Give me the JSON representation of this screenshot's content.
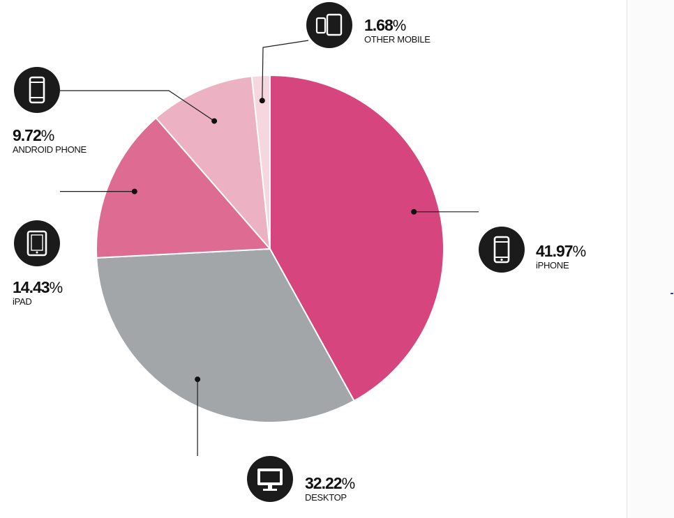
{
  "chart_data": {
    "type": "pie",
    "title": "",
    "slices": [
      {
        "label": "iPHONE",
        "value": 41.97,
        "display": "41.97",
        "color": "#d6457e",
        "icon": "smartphone-icon"
      },
      {
        "label": "DESKTOP",
        "value": 32.22,
        "display": "32.22",
        "color": "#a3a6a9",
        "icon": "desktop-monitor-icon"
      },
      {
        "label": "iPAD",
        "value": 14.43,
        "display": "14.43",
        "color": "#de6b92",
        "icon": "tablet-icon"
      },
      {
        "label": "ANDROID PHONE",
        "value": 9.72,
        "display": "9.72",
        "color": "#ecb1c3",
        "icon": "android-phone-icon"
      },
      {
        "label": "OTHER MOBILE",
        "value": 1.68,
        "display": "1.68",
        "color": "#f6d7df",
        "icon": "phone-and-tablet-icon"
      }
    ],
    "percent_sign": "%",
    "start_angle": "12 o'clock",
    "direction": "clockwise",
    "legend": "none (callout labels with icons)"
  }
}
